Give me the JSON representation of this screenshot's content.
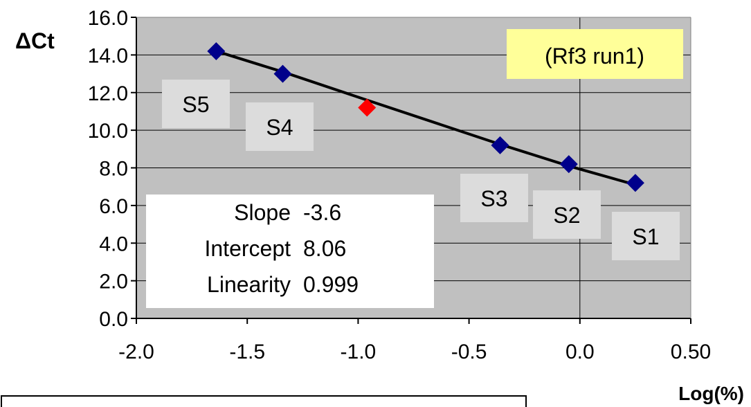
{
  "chart_data": {
    "type": "scatter",
    "xlabel": "Log(%)",
    "ylabel": "ΔCt",
    "xlim": [
      -2.0,
      0.5
    ],
    "ylim": [
      0.0,
      16.0
    ],
    "x_ticks": [
      -2.0,
      -1.5,
      -1.0,
      -0.5,
      0.0,
      0.5
    ],
    "x_tick_labels": [
      "-2.0",
      "-1.5",
      "-1.0",
      "-0.5",
      "0.0",
      "0.50"
    ],
    "y_ticks": [
      0,
      2,
      4,
      6,
      8,
      10,
      12,
      14,
      16
    ],
    "y_tick_labels": [
      "0.0",
      "2.0",
      "4.0",
      "6.0",
      "8.0",
      "10.0",
      "12.0",
      "14.0",
      "16.0"
    ],
    "grid": true,
    "plot_background": "#c0c0c0",
    "standards_color": "#00008b",
    "sample_color": "#ff0000",
    "standards": [
      {
        "label": "S5",
        "x": -1.64,
        "y": 14.2
      },
      {
        "label": "S4",
        "x": -1.34,
        "y": 13.0
      },
      {
        "label": "S3",
        "x": -0.36,
        "y": 9.2
      },
      {
        "label": "S2",
        "x": -0.05,
        "y": 8.2
      },
      {
        "label": "S1",
        "x": 0.25,
        "y": 7.2
      }
    ],
    "sample_point": {
      "x": -0.96,
      "y": 11.2
    },
    "trendline": {
      "x": [
        -1.64,
        -1.34,
        -0.96,
        -0.36,
        -0.05,
        0.25
      ],
      "y": [
        14.2,
        13.1,
        11.6,
        9.25,
        8.1,
        7.1
      ]
    },
    "run_label": "(Rf3 run1)",
    "run_label_color": "#ffff99",
    "stats": [
      {
        "name": "Slope",
        "value": "-3.6"
      },
      {
        "name": "Intercept",
        "value": "8.06"
      },
      {
        "name": "Linearity",
        "value": "0.999"
      }
    ]
  }
}
